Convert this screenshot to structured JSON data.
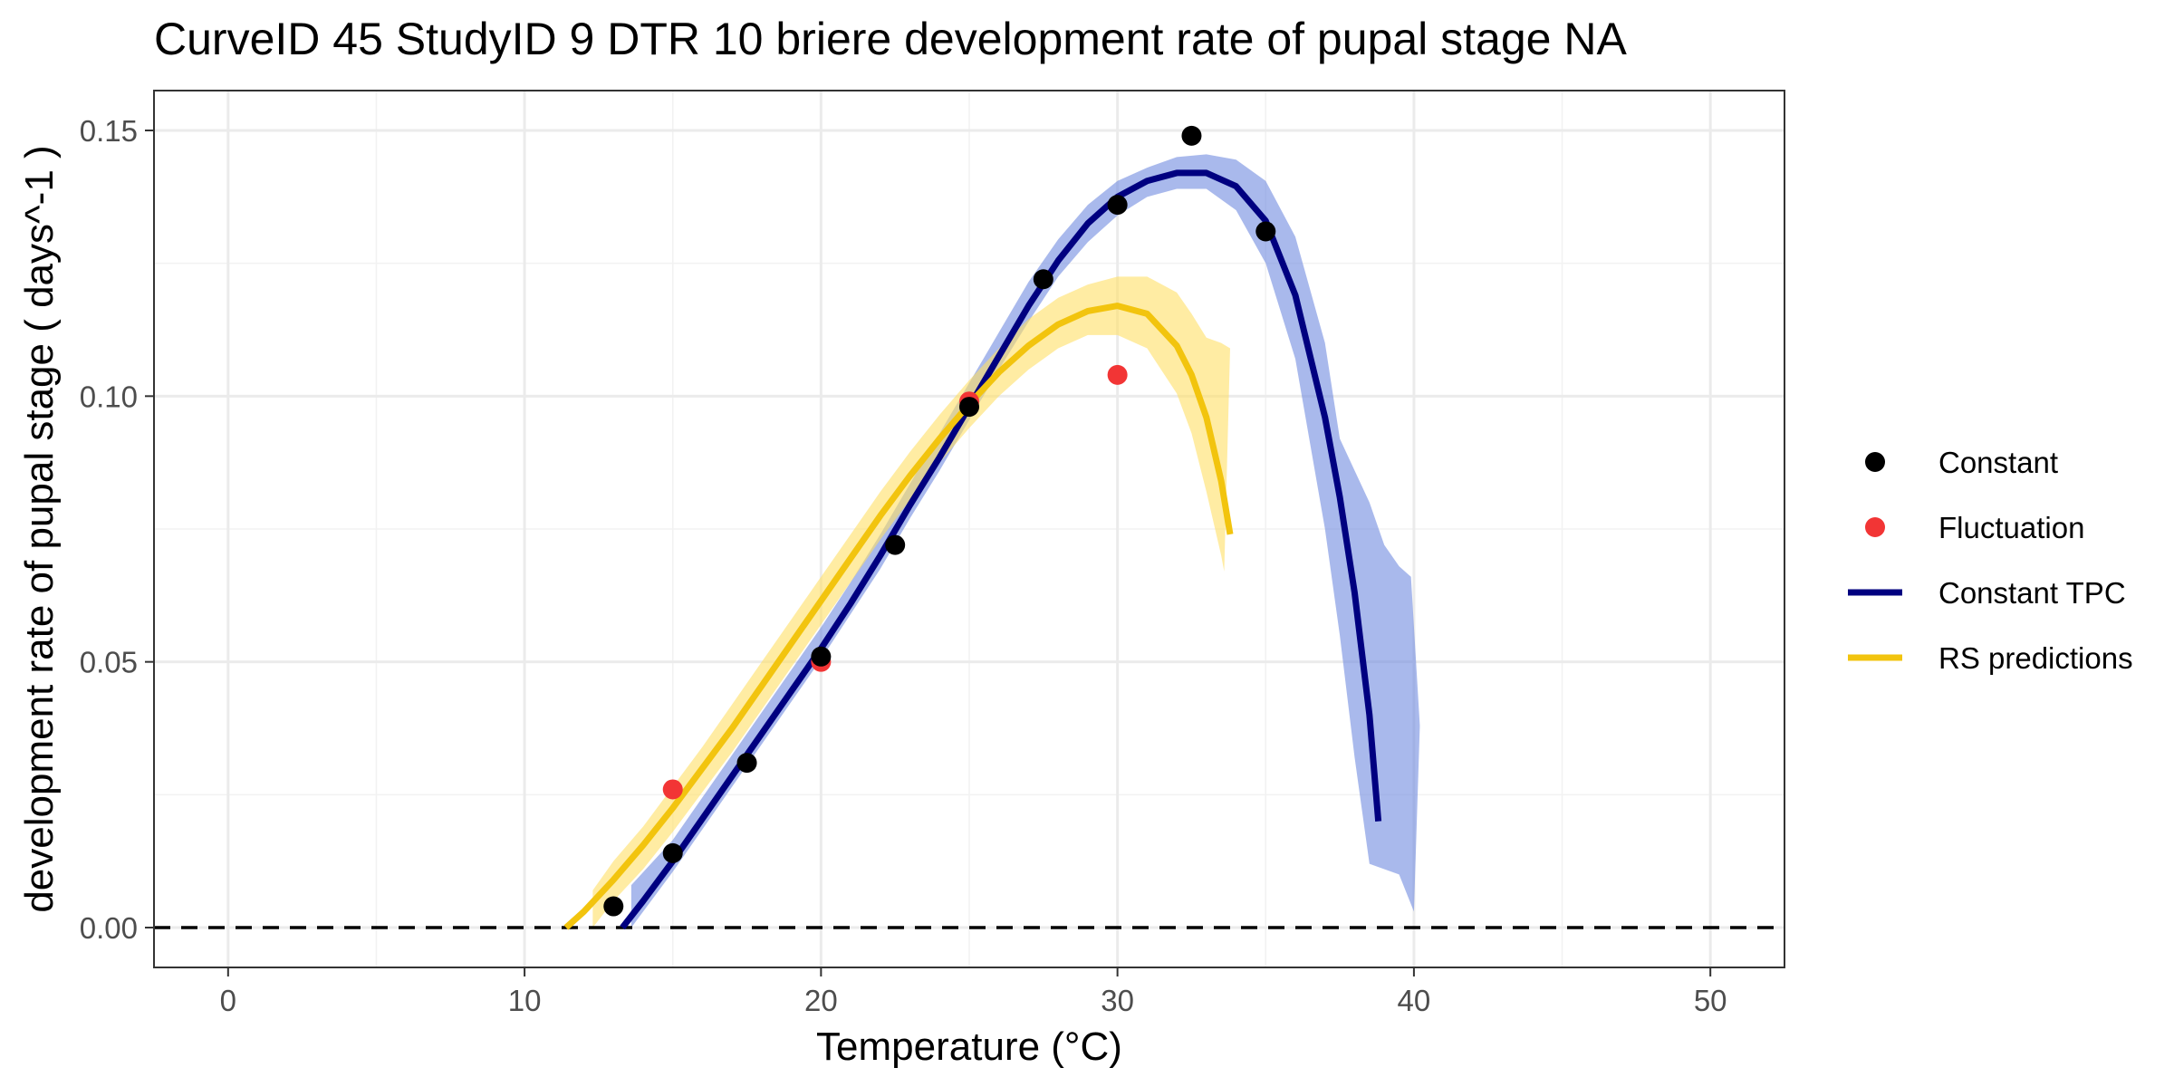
{
  "chart_data": {
    "type": "scatter",
    "title": "CurveID 45 StudyID 9 DTR 10 briere development rate of pupal stage NA",
    "xlabel": "Temperature (°C)",
    "ylabel": "development rate of pupal stage ( days^-1 )",
    "xlim": [
      -2.5,
      52.5
    ],
    "ylim": [
      -0.0075,
      0.1575
    ],
    "x_ticks": [
      0,
      10,
      20,
      30,
      40,
      50
    ],
    "x_tick_labels": [
      "0",
      "10",
      "20",
      "30",
      "40",
      "50"
    ],
    "y_ticks": [
      0,
      0.05,
      0.1,
      0.15
    ],
    "y_tick_labels": [
      "0.00",
      "0.05",
      "0.10",
      "0.15"
    ],
    "grid": true,
    "reference_line": {
      "y": 0,
      "style": "dashed"
    },
    "legend_position": "right",
    "legend": [
      {
        "label": "Constant",
        "kind": "point",
        "color": "#000000"
      },
      {
        "label": "Fluctuation",
        "kind": "point",
        "color": "#f23535"
      },
      {
        "label": "Constant TPC",
        "kind": "line",
        "color": "#000080"
      },
      {
        "label": "RS predictions",
        "kind": "line",
        "color": "#f2c40e"
      }
    ],
    "series": [
      {
        "name": "Constant",
        "kind": "points",
        "color": "#000000",
        "points": [
          [
            13,
            0.004
          ],
          [
            15,
            0.014
          ],
          [
            17.5,
            0.031
          ],
          [
            20,
            0.051
          ],
          [
            22.5,
            0.072
          ],
          [
            25,
            0.098
          ],
          [
            27.5,
            0.122
          ],
          [
            30,
            0.136
          ],
          [
            32.5,
            0.149
          ],
          [
            35,
            0.131
          ]
        ]
      },
      {
        "name": "Fluctuation",
        "kind": "points",
        "color": "#f23535",
        "points": [
          [
            15,
            0.026
          ],
          [
            20,
            0.05
          ],
          [
            25,
            0.099
          ],
          [
            30,
            0.104
          ]
        ]
      },
      {
        "name": "Constant TPC",
        "kind": "line",
        "color": "#000080",
        "band_color": "#6f8be0",
        "points": [
          [
            13.3,
            0.0
          ],
          [
            14,
            0.005
          ],
          [
            15,
            0.0125
          ],
          [
            16,
            0.0205
          ],
          [
            17,
            0.0285
          ],
          [
            18,
            0.0365
          ],
          [
            19,
            0.0445
          ],
          [
            20,
            0.0525
          ],
          [
            21,
            0.061
          ],
          [
            22,
            0.07
          ],
          [
            23,
            0.0795
          ],
          [
            24,
            0.0885
          ],
          [
            25,
            0.098
          ],
          [
            26,
            0.1075
          ],
          [
            27,
            0.117
          ],
          [
            28,
            0.1255
          ],
          [
            29,
            0.1325
          ],
          [
            30,
            0.1375
          ],
          [
            31,
            0.1405
          ],
          [
            32,
            0.142
          ],
          [
            33,
            0.142
          ],
          [
            34,
            0.1395
          ],
          [
            35,
            0.133
          ],
          [
            36,
            0.119
          ],
          [
            37,
            0.096
          ],
          [
            37.5,
            0.081
          ],
          [
            38,
            0.063
          ],
          [
            38.5,
            0.04
          ],
          [
            38.8,
            0.02
          ]
        ],
        "lower": [
          [
            13.6,
            0.0
          ],
          [
            14,
            0.003
          ],
          [
            15,
            0.0105
          ],
          [
            16,
            0.0185
          ],
          [
            17,
            0.0265
          ],
          [
            18,
            0.0345
          ],
          [
            19,
            0.0425
          ],
          [
            20,
            0.0505
          ],
          [
            21,
            0.059
          ],
          [
            22,
            0.0675
          ],
          [
            23,
            0.077
          ],
          [
            24,
            0.086
          ],
          [
            25,
            0.0955
          ],
          [
            26,
            0.105
          ],
          [
            27,
            0.114
          ],
          [
            28,
            0.1225
          ],
          [
            29,
            0.129
          ],
          [
            30,
            0.134
          ],
          [
            31,
            0.1375
          ],
          [
            32,
            0.139
          ],
          [
            33,
            0.139
          ],
          [
            34,
            0.135
          ],
          [
            35,
            0.125
          ],
          [
            36,
            0.107
          ],
          [
            37,
            0.075
          ],
          [
            37.5,
            0.055
          ],
          [
            38,
            0.032
          ],
          [
            38.5,
            0.012
          ],
          [
            39,
            0.011
          ],
          [
            39.5,
            0.01
          ],
          [
            40,
            0.003
          ]
        ],
        "upper": [
          [
            13.6,
            0.008
          ],
          [
            15,
            0.0165
          ],
          [
            16,
            0.0245
          ],
          [
            17,
            0.0325
          ],
          [
            18,
            0.0405
          ],
          [
            19,
            0.0485
          ],
          [
            20,
            0.0565
          ],
          [
            21,
            0.065
          ],
          [
            22,
            0.074
          ],
          [
            23,
            0.0835
          ],
          [
            24,
            0.093
          ],
          [
            25,
            0.1025
          ],
          [
            26,
            0.112
          ],
          [
            27,
            0.1215
          ],
          [
            28,
            0.1295
          ],
          [
            29,
            0.136
          ],
          [
            30,
            0.1405
          ],
          [
            31,
            0.143
          ],
          [
            32,
            0.145
          ],
          [
            33,
            0.1455
          ],
          [
            34,
            0.1445
          ],
          [
            35,
            0.1405
          ],
          [
            36,
            0.13
          ],
          [
            37,
            0.11
          ],
          [
            37.5,
            0.092
          ],
          [
            38,
            0.086
          ],
          [
            38.5,
            0.08
          ],
          [
            39,
            0.072
          ],
          [
            39.5,
            0.068
          ],
          [
            39.9,
            0.066
          ],
          [
            40.2,
            0.038
          ]
        ]
      },
      {
        "name": "RS predictions",
        "kind": "line",
        "color": "#f2c40e",
        "band_color": "#ffe066",
        "points": [
          [
            11.4,
            0.0
          ],
          [
            12,
            0.003
          ],
          [
            13,
            0.009
          ],
          [
            14,
            0.0155
          ],
          [
            15,
            0.0225
          ],
          [
            16,
            0.03
          ],
          [
            17,
            0.0375
          ],
          [
            18,
            0.0455
          ],
          [
            19,
            0.0535
          ],
          [
            20,
            0.0615
          ],
          [
            21,
            0.0695
          ],
          [
            22,
            0.0775
          ],
          [
            23,
            0.085
          ],
          [
            24,
            0.092
          ],
          [
            25,
            0.0985
          ],
          [
            26,
            0.1045
          ],
          [
            27,
            0.1095
          ],
          [
            28,
            0.1135
          ],
          [
            29,
            0.116
          ],
          [
            30,
            0.117
          ],
          [
            31,
            0.1155
          ],
          [
            32,
            0.1095
          ],
          [
            32.5,
            0.104
          ],
          [
            33,
            0.096
          ],
          [
            33.5,
            0.084
          ],
          [
            33.8,
            0.074
          ]
        ],
        "lower": [
          [
            12.3,
            0.0
          ],
          [
            13,
            0.005
          ],
          [
            14,
            0.011
          ],
          [
            15,
            0.018
          ],
          [
            16,
            0.0255
          ],
          [
            17,
            0.033
          ],
          [
            18,
            0.041
          ],
          [
            19,
            0.049
          ],
          [
            20,
            0.057
          ],
          [
            21,
            0.065
          ],
          [
            22,
            0.073
          ],
          [
            23,
            0.0805
          ],
          [
            24,
            0.0875
          ],
          [
            25,
            0.094
          ],
          [
            26,
            0.1
          ],
          [
            27,
            0.105
          ],
          [
            28,
            0.109
          ],
          [
            29,
            0.1115
          ],
          [
            30,
            0.1115
          ],
          [
            31,
            0.109
          ],
          [
            32,
            0.1005
          ],
          [
            32.5,
            0.093
          ],
          [
            33,
            0.082
          ],
          [
            33.5,
            0.07
          ],
          [
            33.6,
            0.067
          ]
        ],
        "upper": [
          [
            12.3,
            0.007
          ],
          [
            13,
            0.0125
          ],
          [
            14,
            0.019
          ],
          [
            15,
            0.0265
          ],
          [
            16,
            0.034
          ],
          [
            17,
            0.042
          ],
          [
            18,
            0.05
          ],
          [
            19,
            0.058
          ],
          [
            20,
            0.066
          ],
          [
            21,
            0.074
          ],
          [
            22,
            0.082
          ],
          [
            23,
            0.0895
          ],
          [
            24,
            0.0965
          ],
          [
            25,
            0.103
          ],
          [
            26,
            0.109
          ],
          [
            27,
            0.1145
          ],
          [
            28,
            0.1185
          ],
          [
            29,
            0.121
          ],
          [
            30,
            0.1225
          ],
          [
            31,
            0.1225
          ],
          [
            32,
            0.1195
          ],
          [
            32.5,
            0.1155
          ],
          [
            33,
            0.111
          ],
          [
            33.5,
            0.11
          ],
          [
            33.8,
            0.109
          ]
        ]
      }
    ]
  }
}
